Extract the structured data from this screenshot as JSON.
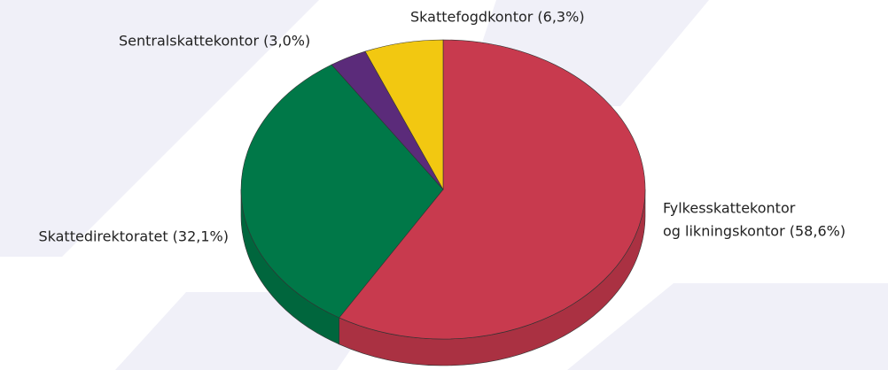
{
  "chart_data": {
    "type": "pie",
    "labels": [
      [
        "Fylkesskattekontor",
        "og likningskontor (58,6%)"
      ],
      [
        "Skattedirektoratet (32,1%)"
      ],
      [
        "Sentralskattekontor (3,0%)"
      ],
      [
        "Skattefogdkontor (6,3%)"
      ]
    ],
    "values": [
      58.6,
      32.1,
      3.0,
      6.3
    ],
    "colors": [
      "#c83a4e",
      "#007848",
      "#5b2b7a",
      "#f2c811"
    ]
  }
}
